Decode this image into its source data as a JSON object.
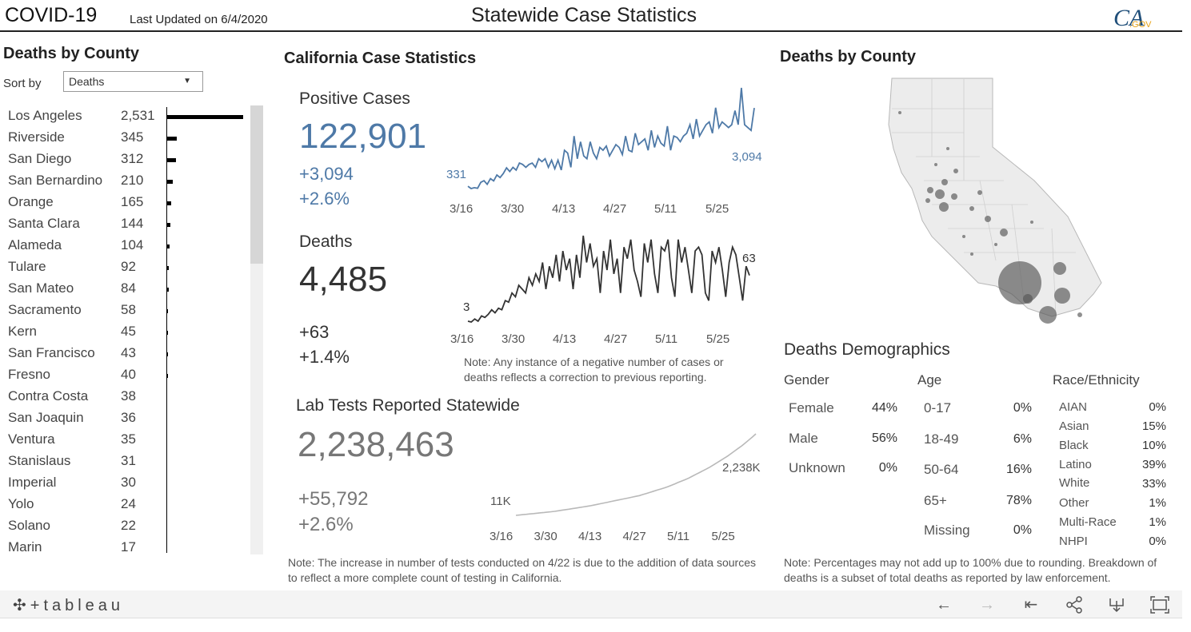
{
  "header": {
    "title": "COVID-19",
    "updated": "Last Updated on 6/4/2020",
    "center_title": "Statewide Case Statistics",
    "logo_text": "CA.GOV"
  },
  "left": {
    "title": "Deaths by County",
    "sort_label": "Sort by",
    "sort_value": "Deaths",
    "counties": [
      {
        "name": "Los Angeles",
        "deaths": "2,531",
        "value": 2531
      },
      {
        "name": "Riverside",
        "deaths": "345",
        "value": 345
      },
      {
        "name": "San Diego",
        "deaths": "312",
        "value": 312
      },
      {
        "name": "San Bernardino",
        "deaths": "210",
        "value": 210
      },
      {
        "name": "Orange",
        "deaths": "165",
        "value": 165
      },
      {
        "name": "Santa Clara",
        "deaths": "144",
        "value": 144
      },
      {
        "name": "Alameda",
        "deaths": "104",
        "value": 104
      },
      {
        "name": "Tulare",
        "deaths": "92",
        "value": 92
      },
      {
        "name": "San Mateo",
        "deaths": "84",
        "value": 84
      },
      {
        "name": "Sacramento",
        "deaths": "58",
        "value": 58
      },
      {
        "name": "Kern",
        "deaths": "45",
        "value": 45
      },
      {
        "name": "San Francisco",
        "deaths": "43",
        "value": 43
      },
      {
        "name": "Fresno",
        "deaths": "40",
        "value": 40
      },
      {
        "name": "Contra Costa",
        "deaths": "38",
        "value": 38
      },
      {
        "name": "San Joaquin",
        "deaths": "36",
        "value": 36
      },
      {
        "name": "Ventura",
        "deaths": "35",
        "value": 35
      },
      {
        "name": "Stanislaus",
        "deaths": "31",
        "value": 31
      },
      {
        "name": "Imperial",
        "deaths": "30",
        "value": 30
      },
      {
        "name": "Yolo",
        "deaths": "24",
        "value": 24
      },
      {
        "name": "Solano",
        "deaths": "22",
        "value": 22
      },
      {
        "name": "Marin",
        "deaths": "17",
        "value": 17
      }
    ]
  },
  "middle": {
    "title": "California Case Statistics",
    "positive": {
      "label": "Positive Cases",
      "value": "122,901",
      "delta": "+3,094",
      "pct": "+2.6%"
    },
    "deaths": {
      "label": "Deaths",
      "value": "4,485",
      "delta": "+63",
      "pct": "+1.4%"
    },
    "note_negative": "Note: Any instance of a negative number of cases or deaths reflects a correction to previous reporting.",
    "lab": {
      "label": "Lab Tests Reported Statewide",
      "value": "2,238,463",
      "delta": "+55,792",
      "pct": "+2.6%"
    },
    "note_tests": "Note: The increase in number of tests conducted on 4/22 is due to the addition of data sources to reflect a more complete count of testing in California."
  },
  "chart_data": [
    {
      "type": "line",
      "name": "positive_cases_daily",
      "color": "#4e79a7",
      "x_ticks": [
        "3/16",
        "3/30",
        "4/13",
        "4/27",
        "5/11",
        "5/25"
      ],
      "first_label": "331",
      "last_label": "3,094",
      "values": [
        331,
        250,
        280,
        260,
        470,
        530,
        400,
        600,
        520,
        730,
        640,
        780,
        980,
        850,
        1000,
        900,
        1150,
        1100,
        1000,
        1100,
        1150,
        1000,
        1300,
        1200,
        1300,
        1000,
        1250,
        950,
        1250,
        900,
        1600,
        1500,
        1000,
        2100,
        1300,
        1900,
        1400,
        1300,
        1900,
        1500,
        1300,
        1700,
        1600,
        1750,
        1400,
        1600,
        1800,
        1700,
        1450,
        2100,
        1600,
        1550,
        2200,
        1800,
        1900,
        2000,
        1600,
        2300,
        1700,
        2100,
        1850,
        1750,
        2450,
        1600,
        2100,
        2050,
        1900,
        2100,
        2200,
        2500,
        2000,
        2700,
        2100,
        2300,
        2500,
        2600,
        2200,
        3100,
        2400,
        2600,
        2500,
        2400,
        2500,
        3000,
        2500,
        3800,
        2500,
        2400,
        2300,
        3094
      ]
    },
    {
      "type": "line",
      "name": "deaths_daily",
      "color": "#333333",
      "x_ticks": [
        "3/16",
        "3/30",
        "4/13",
        "4/27",
        "5/11",
        "5/25"
      ],
      "first_label": "3",
      "last_label": "63",
      "values": [
        3,
        2,
        6,
        3,
        10,
        8,
        12,
        18,
        14,
        20,
        18,
        30,
        28,
        40,
        35,
        50,
        45,
        40,
        60,
        50,
        65,
        55,
        80,
        45,
        75,
        60,
        90,
        55,
        95,
        70,
        85,
        45,
        90,
        60,
        115,
        80,
        105,
        75,
        85,
        40,
        95,
        70,
        110,
        65,
        85,
        40,
        100,
        85,
        110,
        70,
        55,
        35,
        105,
        80,
        110,
        65,
        40,
        100,
        95,
        110,
        60,
        35,
        110,
        80,
        100,
        70,
        40,
        95,
        100,
        90,
        40,
        30,
        95,
        80,
        100,
        70,
        35,
        80,
        100,
        90,
        60,
        30,
        75,
        63
      ]
    },
    {
      "type": "line",
      "name": "lab_tests_cumulative",
      "color": "#b9b9b9",
      "x_ticks": [
        "3/16",
        "3/30",
        "4/13",
        "4/27",
        "5/11",
        "5/25"
      ],
      "first_label": "11K",
      "last_label": "2,238K",
      "values": [
        11,
        20,
        30,
        40,
        50,
        60,
        70,
        80,
        90,
        100,
        110,
        120,
        135,
        150,
        165,
        180,
        195,
        210,
        225,
        240,
        255,
        270,
        290,
        310,
        330,
        350,
        370,
        390,
        410,
        430,
        450,
        470,
        490,
        510,
        530,
        550,
        580,
        610,
        640,
        670,
        700,
        730,
        760,
        790,
        830,
        870,
        910,
        950,
        990,
        1030,
        1080,
        1130,
        1180,
        1230,
        1280,
        1330,
        1390,
        1450,
        1510,
        1570,
        1630,
        1700,
        1770,
        1840,
        1910,
        1990,
        2070,
        2150,
        2238
      ]
    }
  ],
  "right": {
    "map_title": "Deaths by County",
    "demo_title": "Deaths Demographics",
    "gender": {
      "header": "Gender",
      "rows": [
        {
          "label": "Female",
          "value": "44%"
        },
        {
          "label": "Male",
          "value": "56%"
        },
        {
          "label": "Unknown",
          "value": "0%"
        }
      ]
    },
    "age": {
      "header": "Age",
      "rows": [
        {
          "label": "0-17",
          "value": "0%"
        },
        {
          "label": "18-49",
          "value": "6%"
        },
        {
          "label": "50-64",
          "value": "16%"
        },
        {
          "label": "65+",
          "value": "78%"
        },
        {
          "label": "Missing",
          "value": "0%"
        }
      ]
    },
    "race": {
      "header": "Race/Ethnicity",
      "rows": [
        {
          "label": "AIAN",
          "value": "0%"
        },
        {
          "label": "Asian",
          "value": "15%"
        },
        {
          "label": "Black",
          "value": "10%"
        },
        {
          "label": "Latino",
          "value": "39%"
        },
        {
          "label": "White",
          "value": "33%"
        },
        {
          "label": "Other",
          "value": "1%"
        },
        {
          "label": "Multi-Race",
          "value": "1%"
        },
        {
          "label": "NHPI",
          "value": "0%"
        }
      ]
    },
    "note": "Note: Percentages may not add up to 100% due to rounding. Breakdown of deaths is a subset of total deaths as reported by law enforcement."
  },
  "footer": {
    "brand": "tableau",
    "icons": [
      "undo-icon",
      "redo-icon",
      "revert-icon",
      "share-icon",
      "download-icon",
      "fullscreen-icon"
    ]
  }
}
